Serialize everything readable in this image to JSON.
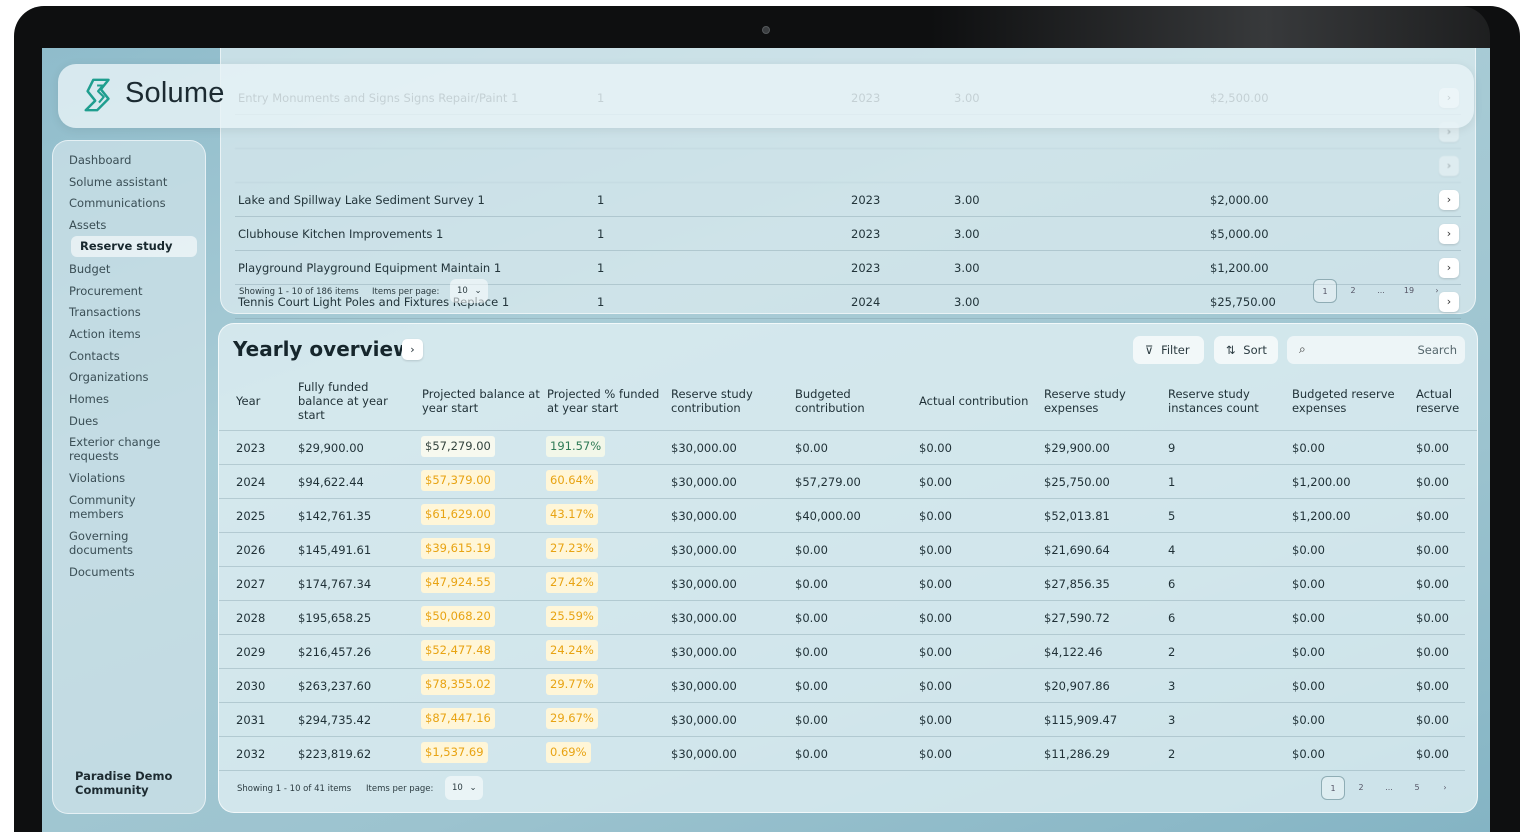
{
  "app": {
    "name": "Solume",
    "community": "Paradise Demo Community"
  },
  "sidebar": {
    "items": [
      {
        "label": "Dashboard"
      },
      {
        "label": "Solume assistant"
      },
      {
        "label": "Communications"
      },
      {
        "label": "Assets"
      },
      {
        "label": "Reserve study",
        "active": true
      },
      {
        "label": "Budget"
      },
      {
        "label": "Procurement"
      },
      {
        "label": "Transactions"
      },
      {
        "label": "Action items"
      },
      {
        "label": "Contacts"
      },
      {
        "label": "Organizations"
      },
      {
        "label": "Homes"
      },
      {
        "label": "Dues"
      },
      {
        "label": "Exterior change requests"
      },
      {
        "label": "Violations"
      },
      {
        "label": "Community members"
      },
      {
        "label": "Governing documents"
      },
      {
        "label": "Documents"
      }
    ]
  },
  "assets_table": {
    "rows": [
      {
        "name": "Entry Monuments and Signs Signs Repair/Paint 1",
        "qty": "1",
        "year": "2023",
        "life": "3.00",
        "cost": "$2,500.00"
      },
      {
        "name": "",
        "qty": "",
        "year": "",
        "life": "",
        "cost": ""
      },
      {
        "name": "",
        "qty": "",
        "year": "",
        "life": "",
        "cost": ""
      },
      {
        "name": "Lake and Spillway Lake Sediment Survey 1",
        "qty": "1",
        "year": "2023",
        "life": "3.00",
        "cost": "$2,000.00"
      },
      {
        "name": "Clubhouse Kitchen Improvements 1",
        "qty": "1",
        "year": "2023",
        "life": "3.00",
        "cost": "$5,000.00"
      },
      {
        "name": "Playground Playground Equipment Maintain 1",
        "qty": "1",
        "year": "2023",
        "life": "3.00",
        "cost": "$1,200.00"
      },
      {
        "name": "Tennis Court  Light Poles and Fixtures Replace 1",
        "qty": "1",
        "year": "2024",
        "life": "3.00",
        "cost": "$25,750.00"
      }
    ],
    "pagination": {
      "showing": "Showing 1 - 10 of 186 items",
      "items_per_page_label": "Items per page:",
      "items_per_page": "10",
      "pages": [
        "1",
        "2",
        "...",
        "19"
      ]
    }
  },
  "yearly_overview": {
    "title": "Yearly overview",
    "filter_label": "Filter",
    "sort_label": "Sort",
    "search_placeholder": "Search",
    "columns": [
      "Year",
      "Fully funded balance at year start",
      "Projected balance at year start",
      "Projected % funded at year start",
      "Reserve study contribution",
      "Budgeted contribution",
      "Actual contribution",
      "Reserve study expenses",
      "Reserve study instances count",
      "Budgeted reserve expenses",
      "Actual reserve expenses"
    ],
    "rows": [
      {
        "year": "2023",
        "ffb": "$29,900.00",
        "pb": "$57,279.00",
        "pf": "191.57%",
        "rsc": "$30,000.00",
        "bc": "$0.00",
        "ac": "$0.00",
        "rse": "$29,900.00",
        "cnt": "9",
        "bre": "$0.00",
        "are": "$0.00",
        "pb_style": "plain",
        "pf_style": "green"
      },
      {
        "year": "2024",
        "ffb": "$94,622.44",
        "pb": "$57,379.00",
        "pf": "60.64%",
        "rsc": "$30,000.00",
        "bc": "$57,279.00",
        "ac": "$0.00",
        "rse": "$25,750.00",
        "cnt": "1",
        "bre": "$1,200.00",
        "are": "$0.00",
        "pb_style": "orange",
        "pf_style": "orange"
      },
      {
        "year": "2025",
        "ffb": "$142,761.35",
        "pb": "$61,629.00",
        "pf": "43.17%",
        "rsc": "$30,000.00",
        "bc": "$40,000.00",
        "ac": "$0.00",
        "rse": "$52,013.81",
        "cnt": "5",
        "bre": "$1,200.00",
        "are": "$0.00",
        "pb_style": "orange",
        "pf_style": "orange"
      },
      {
        "year": "2026",
        "ffb": "$145,491.61",
        "pb": "$39,615.19",
        "pf": "27.23%",
        "rsc": "$30,000.00",
        "bc": "$0.00",
        "ac": "$0.00",
        "rse": "$21,690.64",
        "cnt": "4",
        "bre": "$0.00",
        "are": "$0.00",
        "pb_style": "orange",
        "pf_style": "orange"
      },
      {
        "year": "2027",
        "ffb": "$174,767.34",
        "pb": "$47,924.55",
        "pf": "27.42%",
        "rsc": "$30,000.00",
        "bc": "$0.00",
        "ac": "$0.00",
        "rse": "$27,856.35",
        "cnt": "6",
        "bre": "$0.00",
        "are": "$0.00",
        "pb_style": "orange",
        "pf_style": "orange"
      },
      {
        "year": "2028",
        "ffb": "$195,658.25",
        "pb": "$50,068.20",
        "pf": "25.59%",
        "rsc": "$30,000.00",
        "bc": "$0.00",
        "ac": "$0.00",
        "rse": "$27,590.72",
        "cnt": "6",
        "bre": "$0.00",
        "are": "$0.00",
        "pb_style": "orange",
        "pf_style": "orange"
      },
      {
        "year": "2029",
        "ffb": "$216,457.26",
        "pb": "$52,477.48",
        "pf": "24.24%",
        "rsc": "$30,000.00",
        "bc": "$0.00",
        "ac": "$0.00",
        "rse": "$4,122.46",
        "cnt": "2",
        "bre": "$0.00",
        "are": "$0.00",
        "pb_style": "orange",
        "pf_style": "orange"
      },
      {
        "year": "2030",
        "ffb": "$263,237.60",
        "pb": "$78,355.02",
        "pf": "29.77%",
        "rsc": "$30,000.00",
        "bc": "$0.00",
        "ac": "$0.00",
        "rse": "$20,907.86",
        "cnt": "3",
        "bre": "$0.00",
        "are": "$0.00",
        "pb_style": "orange",
        "pf_style": "orange"
      },
      {
        "year": "2031",
        "ffb": "$294,735.42",
        "pb": "$87,447.16",
        "pf": "29.67%",
        "rsc": "$30,000.00",
        "bc": "$0.00",
        "ac": "$0.00",
        "rse": "$115,909.47",
        "cnt": "3",
        "bre": "$0.00",
        "are": "$0.00",
        "pb_style": "orange",
        "pf_style": "orange"
      },
      {
        "year": "2032",
        "ffb": "$223,819.62",
        "pb": "$1,537.69",
        "pf": "0.69%",
        "rsc": "$30,000.00",
        "bc": "$0.00",
        "ac": "$0.00",
        "rse": "$11,286.29",
        "cnt": "2",
        "bre": "$0.00",
        "are": "$0.00",
        "pb_style": "orange",
        "pf_style": "orange"
      }
    ],
    "pagination": {
      "showing": "Showing 1 - 10 of 41 items",
      "items_per_page_label": "Items per page:",
      "items_per_page": "10",
      "pages": [
        "1",
        "2",
        "...",
        "5"
      ]
    }
  },
  "icons": {
    "logo": "solume-logo-icon",
    "chevron": "chevron-right-icon",
    "filter": "filter-icon",
    "sort": "sort-icon",
    "search": "search-icon"
  },
  "colors": {
    "brand_teal": "#1f9e8f",
    "warn_text": "#e8a312",
    "warn_bg": "#fff6d8",
    "ok_text": "#2e7a55"
  }
}
